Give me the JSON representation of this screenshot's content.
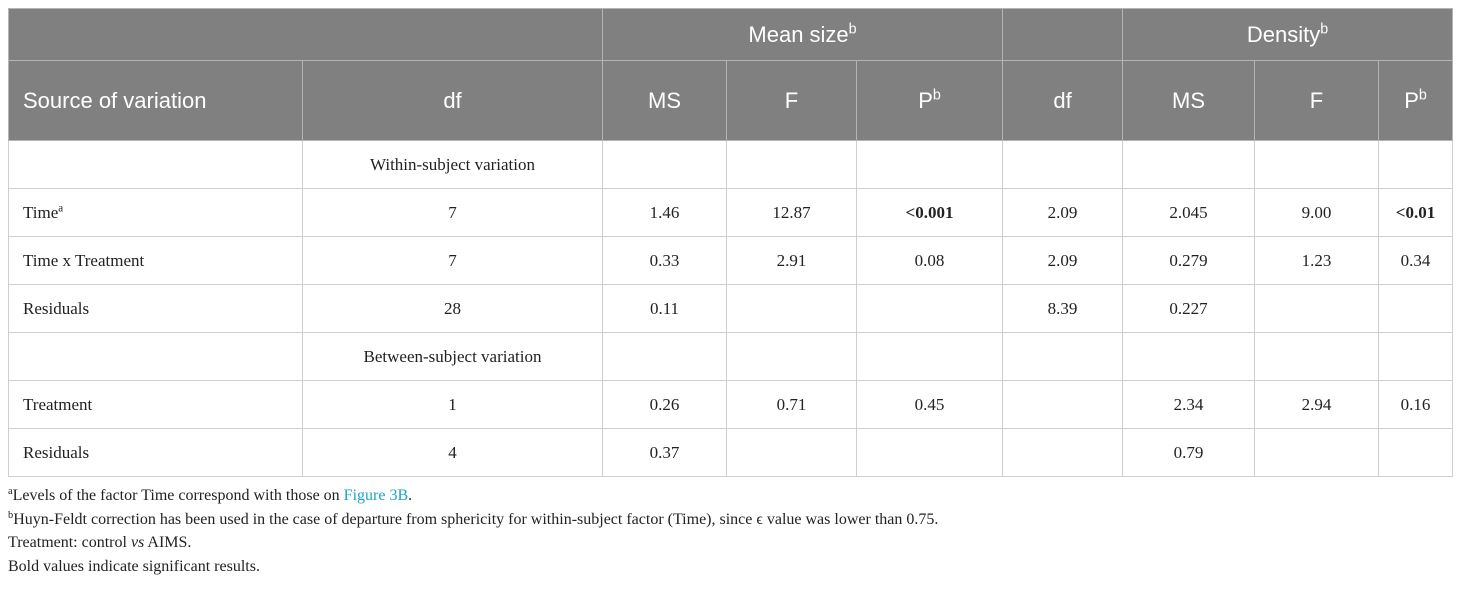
{
  "table": {
    "header": {
      "groups": [
        {
          "text": "Mean size",
          "sup": "b"
        },
        {
          "text": "Density",
          "sup": "b"
        }
      ],
      "columns": [
        {
          "text": "Source of variation"
        },
        {
          "text": "df"
        },
        {
          "text": "MS"
        },
        {
          "text": "F"
        },
        {
          "text": "P",
          "sup": "b"
        },
        {
          "text": "df"
        },
        {
          "text": "MS"
        },
        {
          "text": "F"
        },
        {
          "text": "P",
          "sup": "b"
        }
      ]
    },
    "rows": [
      [
        null,
        {
          "text": "Within-subject variation"
        },
        null,
        null,
        null,
        null,
        null,
        null,
        null
      ],
      [
        {
          "text": "Time",
          "sup": "a"
        },
        {
          "text": "7"
        },
        {
          "text": "1.46"
        },
        {
          "text": "12.87"
        },
        {
          "text": "<0.001",
          "bold": true
        },
        {
          "text": "2.09"
        },
        {
          "text": "2.045"
        },
        {
          "text": "9.00"
        },
        {
          "text": "<0.01",
          "bold": true
        }
      ],
      [
        {
          "text": "Time x Treatment"
        },
        {
          "text": "7"
        },
        {
          "text": "0.33"
        },
        {
          "text": "2.91"
        },
        {
          "text": "0.08"
        },
        {
          "text": "2.09"
        },
        {
          "text": "0.279"
        },
        {
          "text": "1.23"
        },
        {
          "text": "0.34"
        }
      ],
      [
        {
          "text": "Residuals"
        },
        {
          "text": "28"
        },
        {
          "text": "0.11"
        },
        null,
        null,
        {
          "text": "8.39"
        },
        {
          "text": "0.227"
        },
        null,
        null
      ],
      [
        null,
        {
          "text": "Between-subject variation"
        },
        null,
        null,
        null,
        null,
        null,
        null,
        null
      ],
      [
        {
          "text": "Treatment"
        },
        {
          "text": "1"
        },
        {
          "text": "0.26"
        },
        {
          "text": "0.71"
        },
        {
          "text": "0.45"
        },
        null,
        {
          "text": "2.34"
        },
        {
          "text": "2.94"
        },
        {
          "text": "0.16"
        }
      ],
      [
        {
          "text": "Residuals"
        },
        {
          "text": "4"
        },
        {
          "text": "0.37"
        },
        null,
        null,
        null,
        {
          "text": "0.79"
        },
        null,
        null
      ]
    ]
  },
  "footnotes": [
    [
      {
        "text": "a",
        "style": "sup"
      },
      {
        "text": "Levels of the factor Time correspond with those on "
      },
      {
        "text": "Figure 3B",
        "style": "link"
      },
      {
        "text": "."
      }
    ],
    [
      {
        "text": "b",
        "style": "sup"
      },
      {
        "text": "Huyn-Feldt correction has been used in the case of departure from sphericity for within-subject factor (Time), since ϵ value was lower than 0.75."
      }
    ],
    [
      {
        "text": "Treatment: control "
      },
      {
        "text": "vs",
        "style": "italic"
      },
      {
        "text": " AIMS."
      }
    ],
    [
      {
        "text": "Bold values indicate significant results."
      }
    ]
  ]
}
